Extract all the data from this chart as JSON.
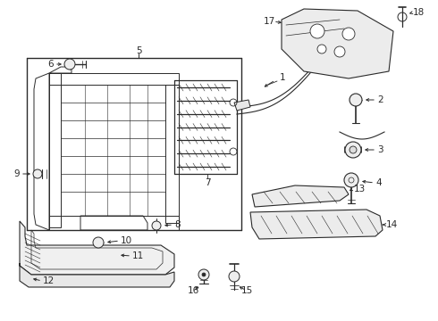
{
  "background_color": "#ffffff",
  "line_color": "#2a2a2a",
  "fig_width": 4.9,
  "fig_height": 3.6,
  "dpi": 100,
  "font_size": 7.5,
  "bold_labels": [
    "5",
    "6",
    "7",
    "8",
    "9",
    "10",
    "11",
    "12",
    "13",
    "14",
    "15",
    "16",
    "17",
    "18",
    "1",
    "2",
    "3",
    "4"
  ]
}
